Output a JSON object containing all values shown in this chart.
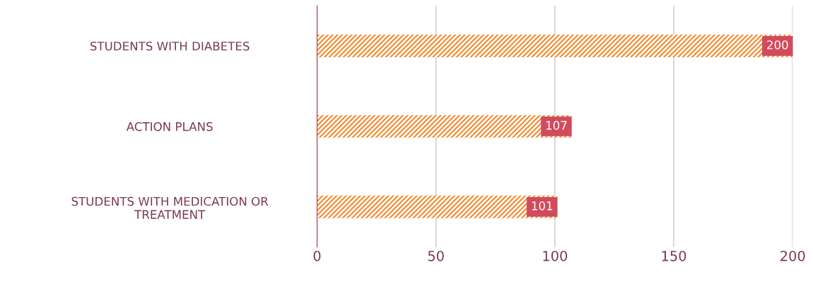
{
  "chart_data": {
    "type": "bar",
    "orientation": "horizontal",
    "categories": [
      "STUDENTS WITH DIABETES",
      "ACTION PLANS",
      "STUDENTS WITH MEDICATION OR\nTREATMENT"
    ],
    "values": [
      200,
      107,
      101
    ],
    "color": "#f28a2e",
    "xlim": [
      0,
      200
    ],
    "xticks": [
      0,
      50,
      100,
      150,
      200
    ],
    "grid": "x",
    "data_labels": true
  }
}
